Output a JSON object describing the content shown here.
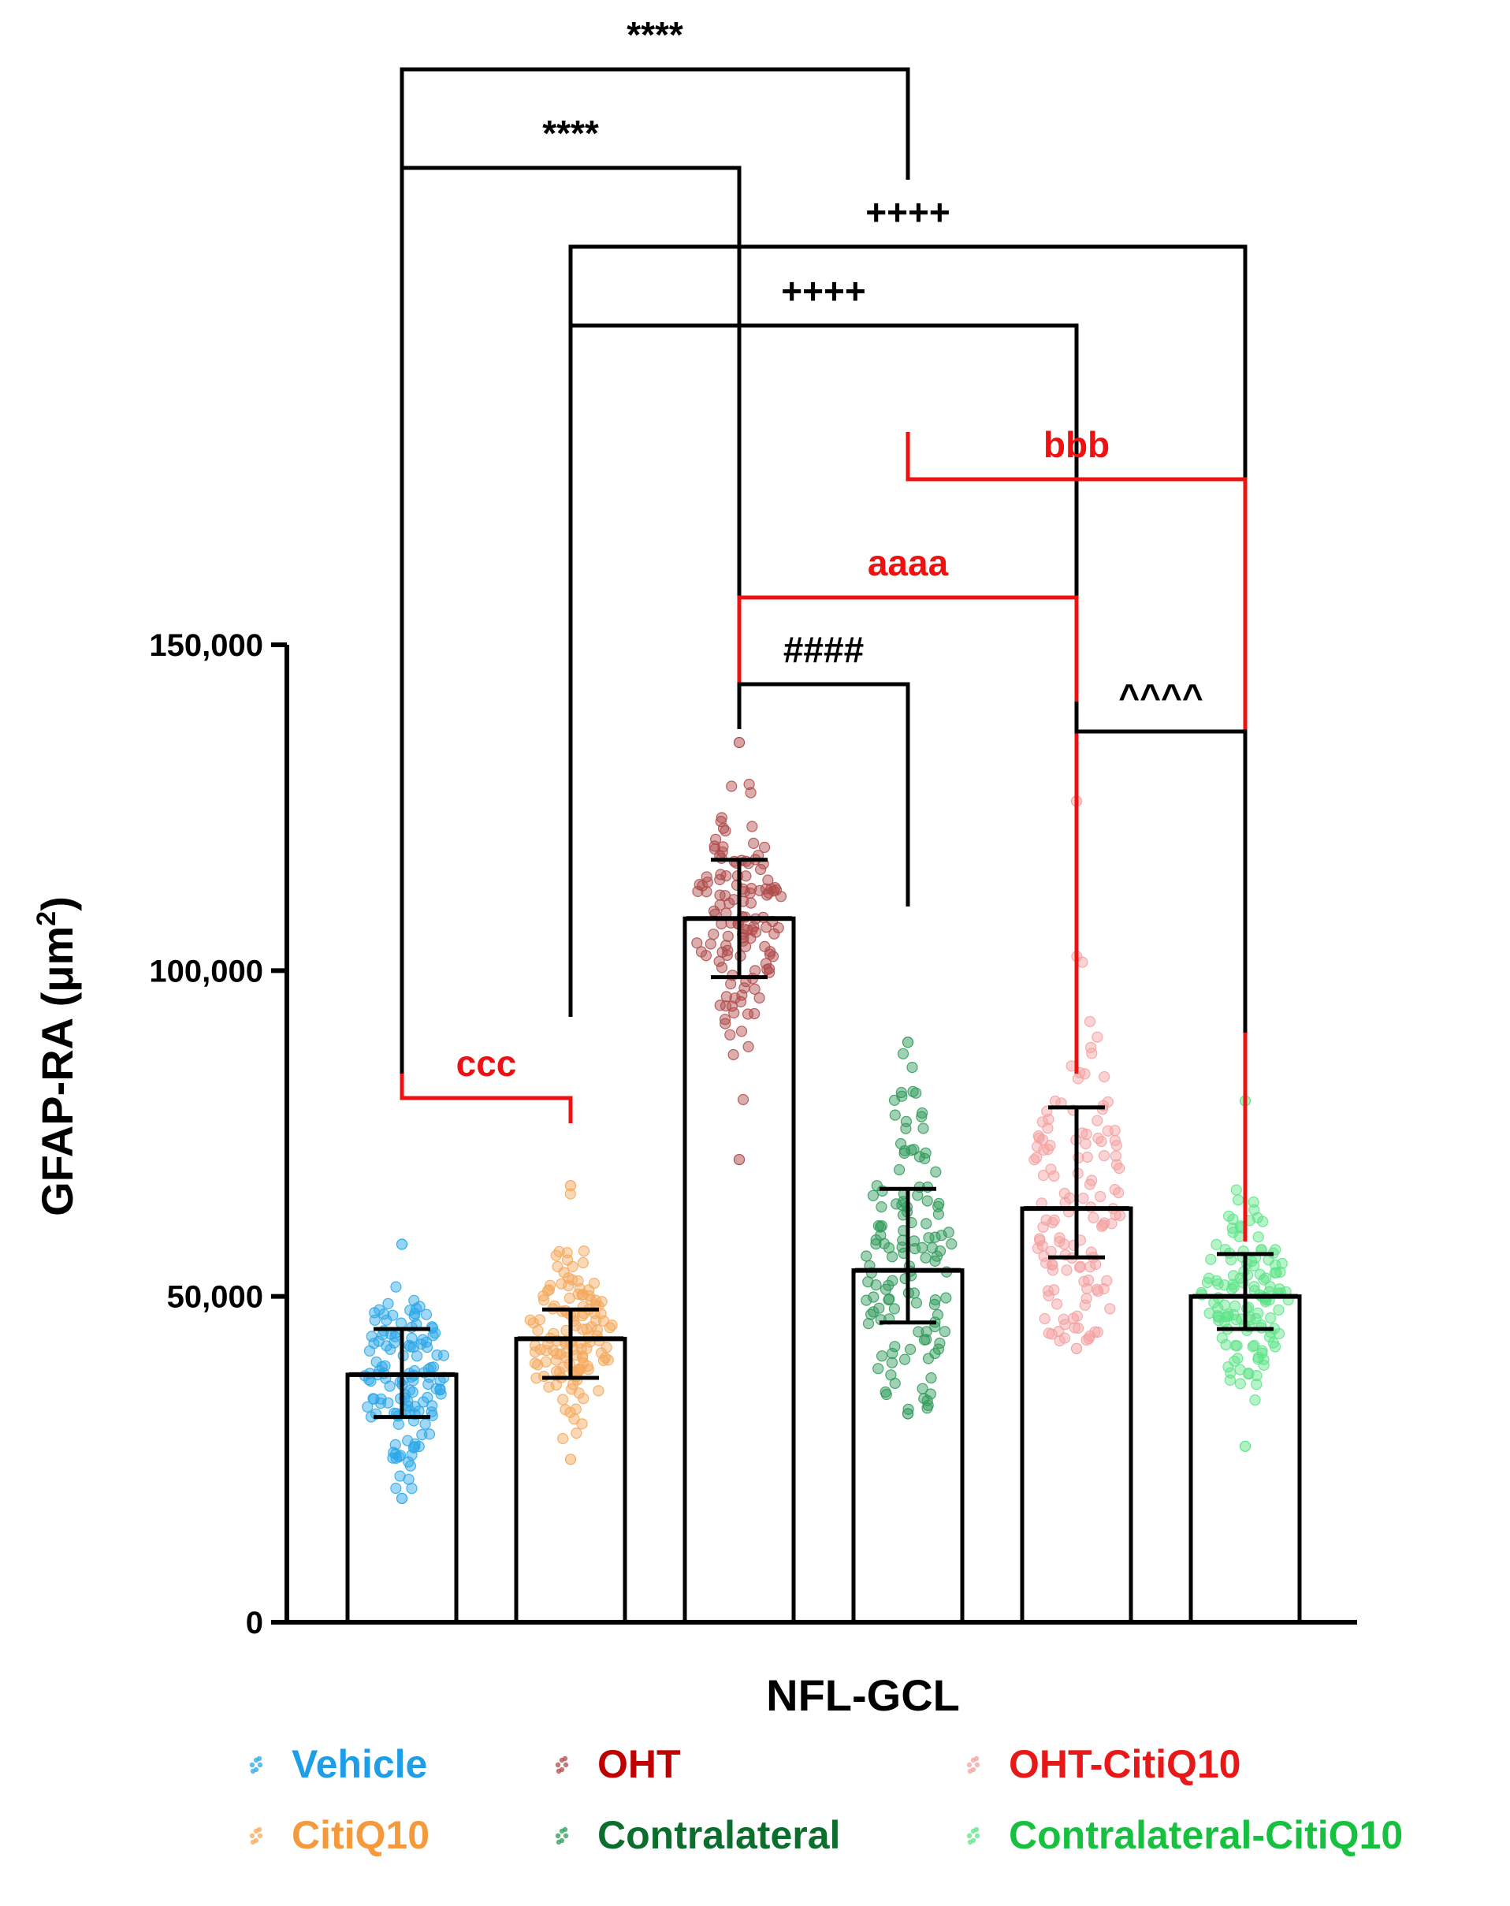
{
  "chart_data": {
    "type": "bar",
    "title": "",
    "xlabel": "NFL-GCL",
    "ylabel_main": "GFAP-RA (μm",
    "ylabel_sup": "2",
    "ylabel_close": ")",
    "ylim": [
      0,
      150000
    ],
    "yticks": [
      {
        "value": 0,
        "label": "0"
      },
      {
        "value": 50000,
        "label": "50,000"
      },
      {
        "value": 100000,
        "label": "100,000"
      },
      {
        "value": 150000,
        "label": "150,000"
      }
    ],
    "groups": [
      {
        "name": "Vehicle",
        "mean": 38000,
        "err_low": 31500,
        "err_high": 45000,
        "min": 19000,
        "max": 58000,
        "color": "#2aa7e8",
        "text_color": "#1e9ee8"
      },
      {
        "name": "CitiQ10",
        "mean": 43500,
        "err_low": 37500,
        "err_high": 48000,
        "min": 25000,
        "max": 67000,
        "color": "#f5a85a",
        "text_color": "#f59a3c"
      },
      {
        "name": "OHT",
        "mean": 108000,
        "err_low": 99000,
        "err_high": 117000,
        "min": 71000,
        "max": 135000,
        "color": "#b04a4a",
        "text_color": "#c00000"
      },
      {
        "name": "Contralateral",
        "mean": 54000,
        "err_low": 46000,
        "err_high": 66500,
        "min": 32000,
        "max": 89000,
        "color": "#2e9a58",
        "text_color": "#0c6e2c"
      },
      {
        "name": "OHT-CitiQ10",
        "mean": 63500,
        "err_low": 56000,
        "err_high": 79000,
        "min": 42000,
        "max": 126000,
        "color": "#f4a0a0",
        "text_color": "#e81818"
      },
      {
        "name": "Contralateral-CitiQ10",
        "mean": 50000,
        "err_low": 45000,
        "err_high": 56500,
        "min": 27000,
        "max": 80000,
        "color": "#5ee488",
        "text_color": "#18c040"
      }
    ],
    "comparisons": [
      {
        "label": "****",
        "from": "Vehicle",
        "to": "Contralateral",
        "color": "#000000"
      },
      {
        "label": "****",
        "from": "Vehicle",
        "to": "OHT",
        "color": "#000000"
      },
      {
        "label": "++++",
        "from": "CitiQ10",
        "to": "Contralateral-CitiQ10",
        "color": "#000000"
      },
      {
        "label": "++++",
        "from": "CitiQ10",
        "to": "OHT-CitiQ10",
        "color": "#000000"
      },
      {
        "label": "bbb",
        "from": "Contralateral",
        "to": "Contralateral-CitiQ10",
        "color": "#ee1111"
      },
      {
        "label": "aaaa",
        "from": "OHT",
        "to": "OHT-CitiQ10",
        "color": "#ee1111"
      },
      {
        "label": "####",
        "from": "OHT",
        "to": "Contralateral",
        "color": "#000000"
      },
      {
        "label": "^^^^",
        "from": "OHT-CitiQ10",
        "to": "Contralateral-CitiQ10",
        "color": "#000000"
      },
      {
        "label": "ccc",
        "from": "Vehicle",
        "to": "CitiQ10",
        "color": "#ee1111"
      }
    ],
    "legend": {
      "placement": "bottom",
      "entries": [
        "Vehicle",
        "OHT",
        "OHT-CitiQ10",
        "CitiQ10",
        "Contralateral",
        "Contralateral-CitiQ10"
      ]
    }
  }
}
